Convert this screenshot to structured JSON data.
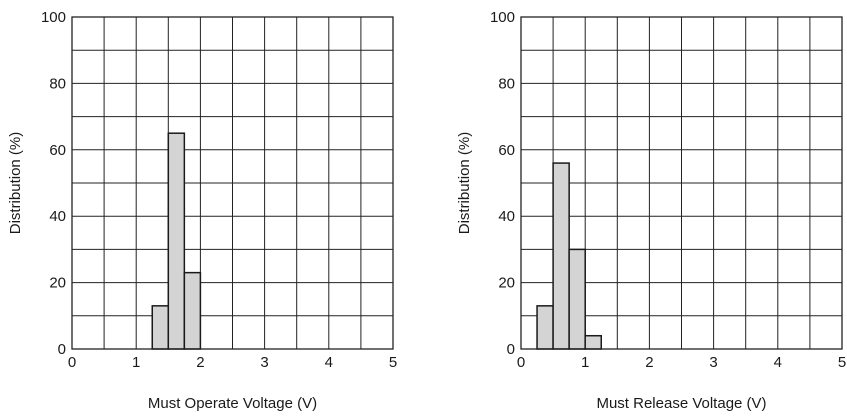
{
  "chart_data": [
    {
      "type": "bar",
      "xlabel": "Must Operate Voltage (V)",
      "ylabel": "Distribution (%)",
      "xlim": [
        0,
        5
      ],
      "ylim": [
        0,
        100
      ],
      "x_ticks": [
        0,
        1,
        2,
        3,
        4,
        5
      ],
      "y_ticks": [
        0,
        20,
        40,
        60,
        80,
        100
      ],
      "x_minor_step": 0.5,
      "y_minor_step": 10,
      "grid": true,
      "bin_width": 0.25,
      "bins": [
        {
          "x_start": 1.25,
          "x_end": 1.5,
          "value": 13
        },
        {
          "x_start": 1.5,
          "x_end": 1.75,
          "value": 65
        },
        {
          "x_start": 1.75,
          "x_end": 2.0,
          "value": 23
        }
      ]
    },
    {
      "type": "bar",
      "xlabel": "Must Release Voltage (V)",
      "ylabel": "Distribution (%)",
      "xlim": [
        0,
        5
      ],
      "ylim": [
        0,
        100
      ],
      "x_ticks": [
        0,
        1,
        2,
        3,
        4,
        5
      ],
      "y_ticks": [
        0,
        20,
        40,
        60,
        80,
        100
      ],
      "x_minor_step": 0.5,
      "y_minor_step": 10,
      "grid": true,
      "bin_width": 0.25,
      "bins": [
        {
          "x_start": 0.25,
          "x_end": 0.5,
          "value": 13
        },
        {
          "x_start": 0.5,
          "x_end": 0.75,
          "value": 56
        },
        {
          "x_start": 0.75,
          "x_end": 1.0,
          "value": 30
        },
        {
          "x_start": 1.0,
          "x_end": 1.25,
          "value": 4
        }
      ]
    }
  ],
  "colors": {
    "bar_fill": "#d4d4d4",
    "bar_stroke": "#1a1a1a",
    "grid": "#222222",
    "background": "#ffffff"
  }
}
